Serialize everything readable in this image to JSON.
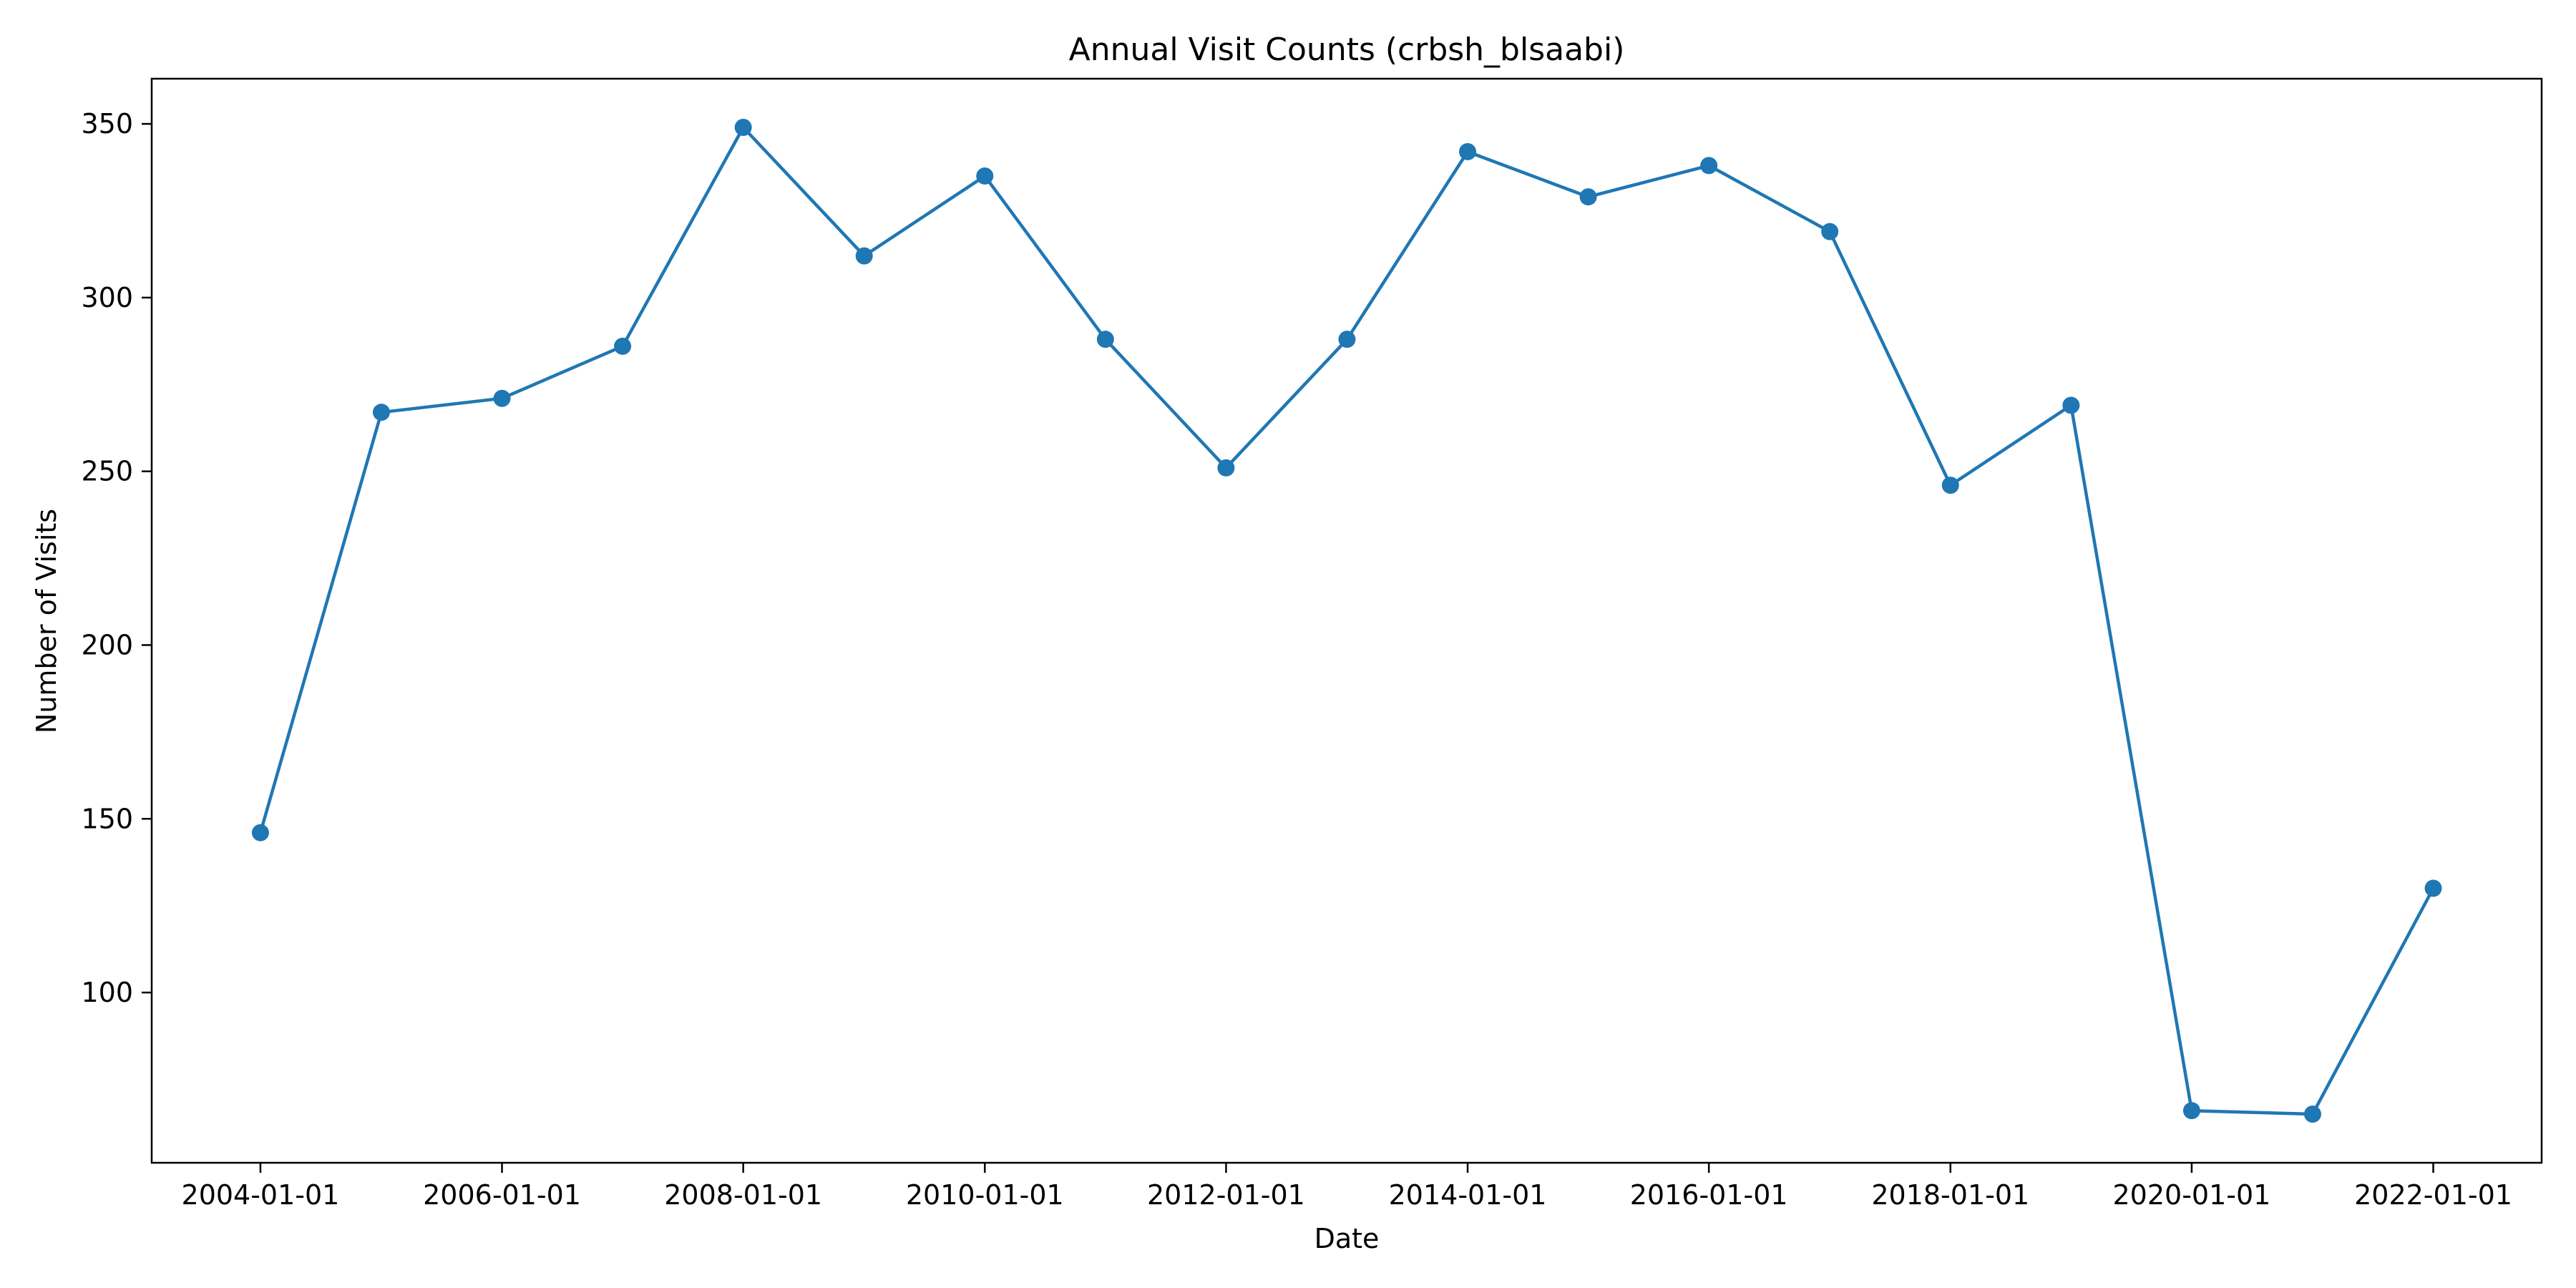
{
  "chart_data": {
    "type": "line",
    "title": "Annual Visit Counts (crbsh_blsaabi)",
    "xlabel": "Date",
    "ylabel": "Number of Visits",
    "x": [
      "2004-01-01",
      "2005-01-01",
      "2006-01-01",
      "2007-01-01",
      "2008-01-01",
      "2009-01-01",
      "2010-01-01",
      "2011-01-01",
      "2012-01-01",
      "2013-01-01",
      "2014-01-01",
      "2015-01-01",
      "2016-01-01",
      "2017-01-01",
      "2018-01-01",
      "2019-01-01",
      "2020-01-01",
      "2021-01-01",
      "2022-01-01"
    ],
    "series": [
      {
        "values": [
          146,
          267,
          271,
          286,
          349,
          312,
          335,
          288,
          251,
          288,
          342,
          329,
          338,
          319,
          246,
          269,
          66,
          65,
          130
        ],
        "color": "#1f77b4"
      }
    ],
    "xticks": [
      "2004-01-01",
      "2006-01-01",
      "2008-01-01",
      "2010-01-01",
      "2012-01-01",
      "2014-01-01",
      "2016-01-01",
      "2018-01-01",
      "2020-01-01",
      "2022-01-01"
    ],
    "yticks": [
      100,
      150,
      200,
      250,
      300,
      350
    ],
    "ylim": [
      51,
      363
    ],
    "xlim": [
      "2003-02-06",
      "2022-11-25"
    ],
    "grid": false,
    "legend": "none"
  }
}
